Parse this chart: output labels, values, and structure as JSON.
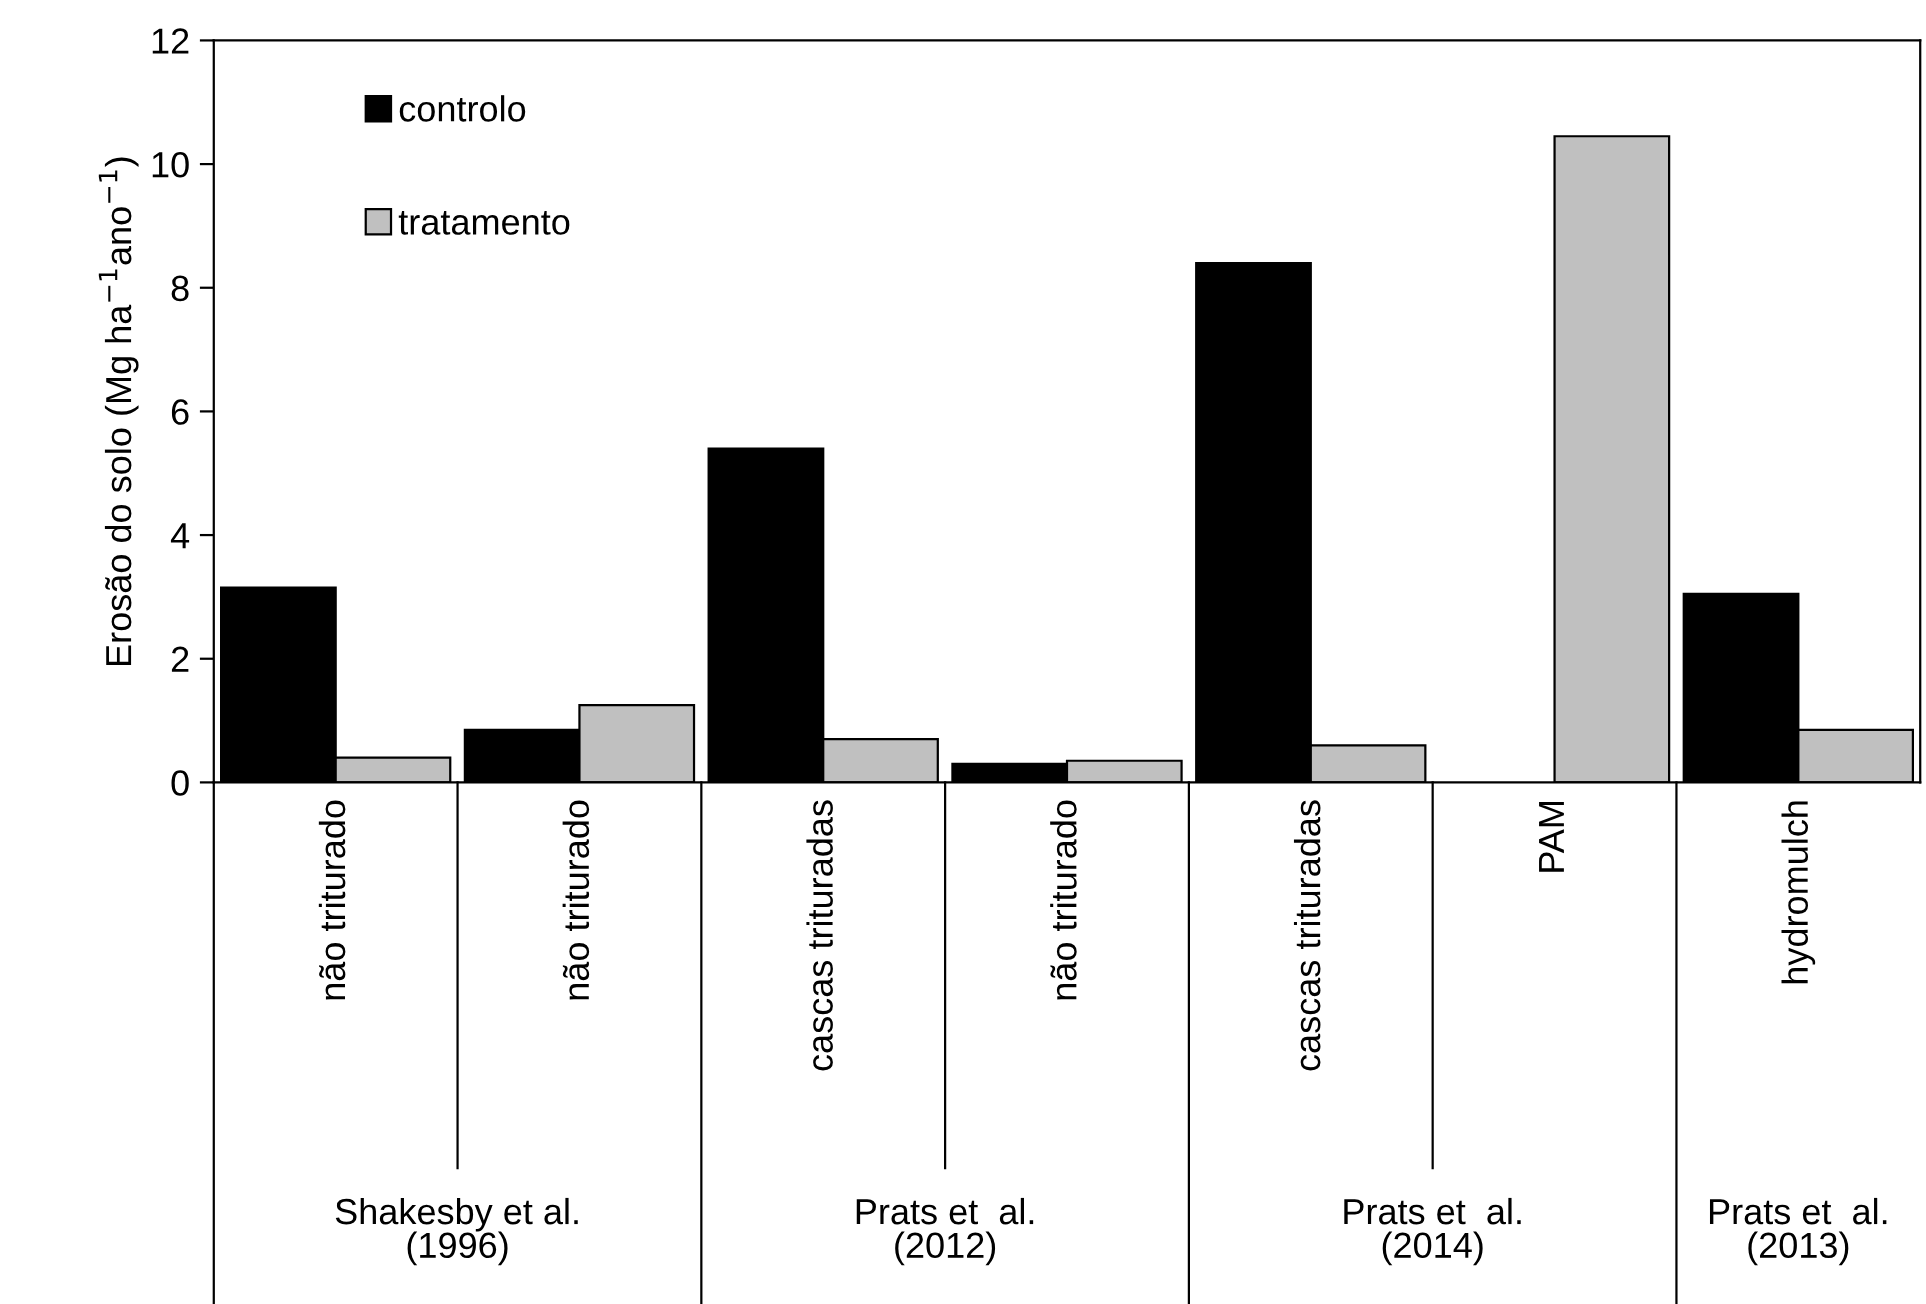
{
  "chart_data": {
    "type": "bar",
    "ylabel": "Erosão do solo (Mg ha$^{−1}$ano$^{−1}$)",
    "categories": [
      "não triturado",
      "não triturado",
      "cascas trituradas",
      "não triturado",
      "cascas trituradas",
      "PAM",
      "hydromulch"
    ],
    "series": [
      {
        "name": "controlo",
        "color": "#000000",
        "values": [
          3.15,
          0.85,
          5.4,
          0.3,
          8.4,
          null,
          3.05
        ]
      },
      {
        "name": "tratamento",
        "color": "#c0c0c0",
        "values": [
          0.4,
          1.25,
          0.7,
          0.35,
          0.6,
          10.45,
          0.85
        ]
      }
    ],
    "ylim": [
      0,
      12
    ],
    "yticks": [
      0,
      2,
      4,
      6,
      8,
      10,
      12
    ],
    "annotations": [
      "Shakesby et al.\n(1996)",
      "Prats et  al.\n(2012)",
      "Prats et  al.\n(2014)",
      "Prats et  al.\n(2013)"
    ],
    "grid": false,
    "legend": "top left"
  }
}
